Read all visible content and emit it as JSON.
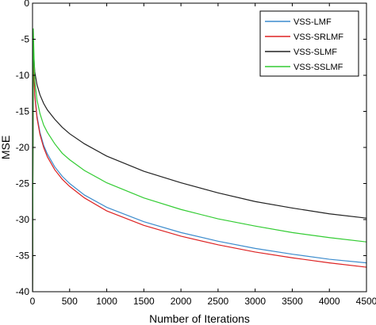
{
  "chart_data": {
    "type": "line",
    "title": "",
    "xlabel": "Number of Iterations",
    "ylabel": "MSE",
    "xlim": [
      0,
      4500
    ],
    "ylim": [
      -40,
      0
    ],
    "xticks": [
      0,
      500,
      1000,
      1500,
      2000,
      2500,
      3000,
      3500,
      4000,
      4500
    ],
    "yticks": [
      0,
      -5,
      -10,
      -15,
      -20,
      -25,
      -30,
      -35,
      -40
    ],
    "grid": false,
    "legend_position": "top-right",
    "series": [
      {
        "name": "VSS-LMF",
        "color": "#3c8ccd",
        "x": [
          0,
          10,
          30,
          60,
          100,
          150,
          200,
          300,
          400,
          500,
          700,
          1000,
          1500,
          2000,
          2500,
          3000,
          3500,
          4000,
          4500
        ],
        "y": [
          -40,
          -7,
          -12.5,
          -15.6,
          -17.9,
          -19.7,
          -20.9,
          -22.7,
          -24.0,
          -25.0,
          -26.6,
          -28.3,
          -30.3,
          -31.8,
          -33.0,
          -34.0,
          -34.8,
          -35.5,
          -36.0
        ]
      },
      {
        "name": "VSS-SRLMF",
        "color": "#dd2222",
        "x": [
          0,
          10,
          30,
          60,
          100,
          150,
          200,
          300,
          400,
          500,
          700,
          1000,
          1500,
          2000,
          2500,
          3000,
          3500,
          4000,
          4500
        ],
        "y": [
          -40,
          -7,
          -12.8,
          -15.9,
          -18.2,
          -20.0,
          -21.3,
          -23.1,
          -24.4,
          -25.4,
          -27.0,
          -28.8,
          -30.8,
          -32.3,
          -33.5,
          -34.5,
          -35.3,
          -36.0,
          -36.6
        ]
      },
      {
        "name": "VSS-SLMF",
        "color": "#222222",
        "x": [
          0,
          10,
          30,
          60,
          100,
          150,
          200,
          300,
          400,
          500,
          700,
          1000,
          1500,
          2000,
          2500,
          3000,
          3500,
          4000,
          4500
        ],
        "y": [
          -40,
          -6,
          -9.5,
          -11.3,
          -12.7,
          -13.9,
          -14.8,
          -16.1,
          -17.2,
          -18.1,
          -19.5,
          -21.2,
          -23.3,
          -24.9,
          -26.3,
          -27.5,
          -28.4,
          -29.2,
          -29.8
        ]
      },
      {
        "name": "VSS-SSLMF",
        "color": "#33cc33",
        "x": [
          0,
          10,
          30,
          60,
          100,
          150,
          200,
          300,
          400,
          500,
          700,
          1000,
          1500,
          2000,
          2500,
          3000,
          3500,
          4000,
          4500
        ],
        "y": [
          -40,
          -3.5,
          -10.7,
          -13.4,
          -15.3,
          -16.9,
          -17.9,
          -19.5,
          -20.8,
          -21.7,
          -23.2,
          -24.9,
          -27.0,
          -28.6,
          -29.9,
          -30.9,
          -31.8,
          -32.5,
          -33.1
        ]
      }
    ]
  }
}
